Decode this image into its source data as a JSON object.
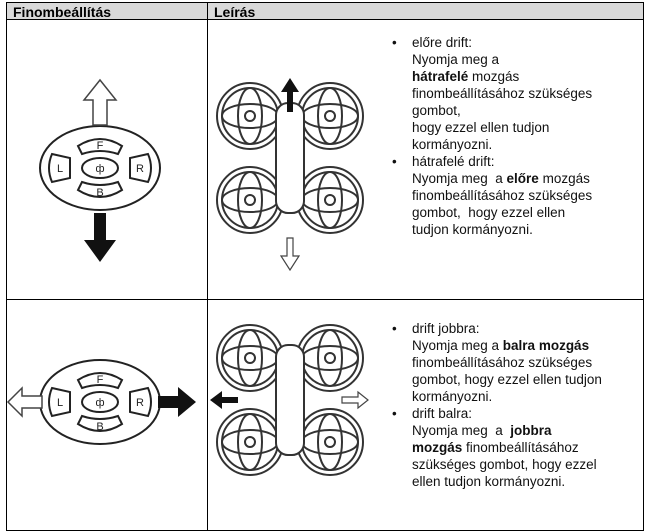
{
  "table": {
    "header": [
      "Finombeállítás",
      "Leírás"
    ],
    "rows": [
      {
        "items": [
          {
            "title": "előre drift:",
            "lines": [
              [
                {
                  "text": "Nyomja meg a"
                }
              ],
              [
                {
                  "text": "hátrafelé",
                  "bold": true
                },
                {
                  "text": " mozgás"
                }
              ],
              [
                {
                  "text": "finombeállításához szükséges"
                }
              ],
              [
                {
                  "text": "gombot,"
                }
              ],
              [
                {
                  "text": "hogy ezzel ellen tudjon"
                }
              ],
              [
                {
                  "text": "kormányozni."
                }
              ]
            ]
          },
          {
            "title": "hátrafelé drift:",
            "lines": [
              [
                {
                  "text": "Nyomja meg  a "
                },
                {
                  "text": "előre",
                  "bold": true
                },
                {
                  "text": " mozgás"
                }
              ],
              [
                {
                  "text": "finombeállításához szükséges"
                }
              ],
              [
                {
                  "text": "gombot,  hogy ezzel ellen"
                }
              ],
              [
                {
                  "text": "tudjon kormányozni."
                }
              ]
            ]
          }
        ]
      },
      {
        "items": [
          {
            "title": "drift jobbra:",
            "lines": [
              [
                {
                  "text": "Nyomja meg a "
                },
                {
                  "text": "balra mozgás",
                  "bold": true
                }
              ],
              [
                {
                  "text": "finombeállításához szükséges"
                }
              ],
              [
                {
                  "text": "gombot, hogy ezzel ellen tudjon"
                }
              ],
              [
                {
                  "text": "kormányozni."
                }
              ]
            ]
          },
          {
            "title": "drift balra:",
            "lines": [
              [
                {
                  "text": "Nyomja meg  a  "
                },
                {
                  "text": "jobbra",
                  "bold": true
                }
              ],
              [
                {
                  "text": "mozgás",
                  "bold": true
                },
                {
                  "text": " finombeállításához"
                }
              ],
              [
                {
                  "text": "szükséges gombot, hogy ezzel"
                }
              ],
              [
                {
                  "text": "ellen tudjon kormányozni."
                }
              ]
            ]
          }
        ]
      }
    ]
  }
}
